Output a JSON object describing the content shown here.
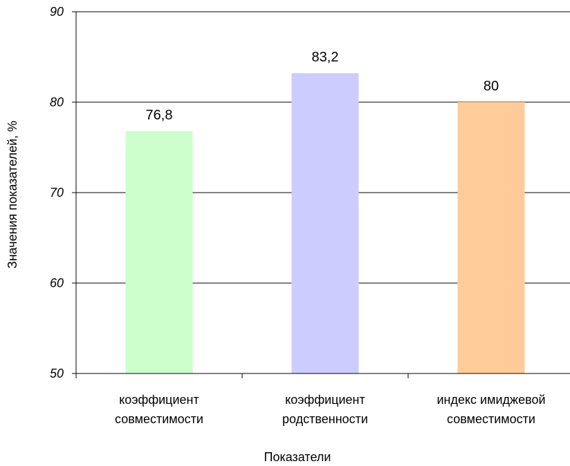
{
  "chart_data": {
    "type": "bar",
    "categories": [
      [
        "коэффициент",
        "совместимости"
      ],
      [
        "коэффициент",
        "родственности"
      ],
      [
        "индекс имиджевой",
        "совместимости"
      ]
    ],
    "values": [
      76.8,
      83.2,
      80
    ],
    "value_labels": [
      "76,8",
      "83,2",
      "80"
    ],
    "colors": [
      "#ccffcc",
      "#ccccff",
      "#ffcc99"
    ],
    "xlabel": "Показатели",
    "ylabel": "Значения показателей, %",
    "ylim": [
      50,
      90
    ],
    "yticks": [
      50,
      60,
      70,
      80,
      90
    ],
    "grid": true,
    "legend": "none"
  }
}
